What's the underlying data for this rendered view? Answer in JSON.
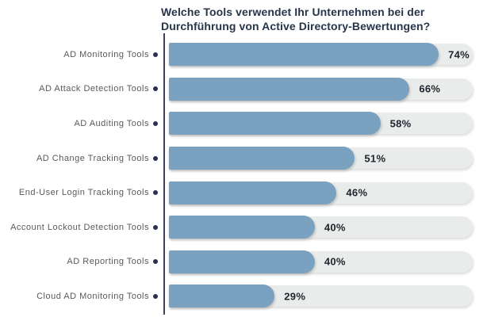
{
  "chart_data": {
    "type": "bar",
    "orientation": "horizontal",
    "title": "Welche Tools verwendet Ihr Unternehmen bei der Durchführung von Active Directory-Bewertungen?",
    "categories": [
      "AD Monitoring Tools",
      "AD Attack Detection Tools",
      "AD Auditing Tools",
      "AD Change Tracking Tools",
      "End-User Login Tracking Tools",
      "Account Lockout Detection Tools",
      "AD Reporting Tools",
      "Cloud AD Monitoring Tools"
    ],
    "values": [
      74,
      66,
      58,
      51,
      46,
      40,
      40,
      29
    ],
    "value_suffix": "%",
    "xlim": [
      0,
      100
    ],
    "grid": false,
    "legend": false,
    "colors": {
      "bar": "#7aa2c0",
      "track": "#eaecec",
      "title": "#26354a",
      "category": "#595959",
      "value": "#20242c",
      "axis": "#3d4357",
      "dot": "#2a3150",
      "background": "#ffffff"
    }
  }
}
